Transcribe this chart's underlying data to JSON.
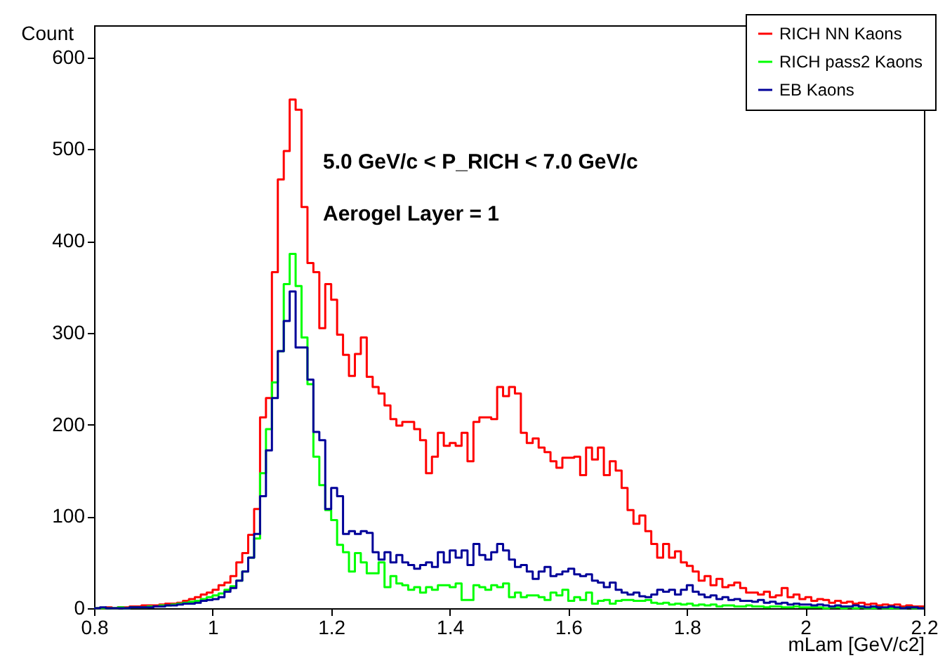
{
  "chart_data": {
    "type": "histogram",
    "xlabel": "mLam [GeV/c2]",
    "ylabel": "Count",
    "annotations": [
      "5.0 GeV/c < P_RICH < 7.0 GeV/c",
      "Aerogel Layer = 1"
    ],
    "bins": [
      0.8,
      0.81,
      0.82,
      0.83,
      0.84,
      0.85,
      0.86,
      0.87,
      0.88,
      0.89,
      0.9,
      0.91,
      0.92,
      0.93,
      0.94,
      0.95,
      0.96,
      0.97,
      0.98,
      0.99,
      1.0,
      1.01,
      1.02,
      1.03,
      1.04,
      1.05,
      1.06,
      1.07,
      1.08,
      1.09,
      1.1,
      1.11,
      1.12,
      1.13,
      1.14,
      1.15,
      1.16,
      1.17,
      1.18,
      1.19,
      1.2,
      1.21,
      1.22,
      1.23,
      1.24,
      1.25,
      1.26,
      1.27,
      1.28,
      1.29,
      1.3,
      1.31,
      1.32,
      1.33,
      1.34,
      1.35,
      1.36,
      1.37,
      1.38,
      1.39,
      1.4,
      1.41,
      1.42,
      1.43,
      1.44,
      1.45,
      1.46,
      1.47,
      1.48,
      1.49,
      1.5,
      1.51,
      1.52,
      1.53,
      1.54,
      1.55,
      1.56,
      1.57,
      1.58,
      1.59,
      1.6,
      1.61,
      1.62,
      1.63,
      1.64,
      1.65,
      1.66,
      1.67,
      1.68,
      1.69,
      1.7,
      1.71,
      1.72,
      1.73,
      1.74,
      1.75,
      1.76,
      1.77,
      1.78,
      1.79,
      1.8,
      1.81,
      1.82,
      1.83,
      1.84,
      1.85,
      1.86,
      1.87,
      1.88,
      1.89,
      1.9,
      1.91,
      1.92,
      1.93,
      1.94,
      1.95,
      1.96,
      1.97,
      1.98,
      1.99,
      2.0,
      2.01,
      2.02,
      2.03,
      2.04,
      2.05,
      2.06,
      2.07,
      2.08,
      2.09,
      2.1,
      2.11,
      2.12,
      2.13,
      2.14,
      2.15,
      2.16,
      2.17,
      2.18,
      2.19,
      2.2
    ],
    "series": [
      {
        "name": "RICH NN Kaons",
        "color": "#ff0000",
        "values": [
          0,
          0,
          1,
          0,
          1,
          1,
          2,
          2,
          3,
          3,
          3,
          4,
          5,
          5,
          6,
          8,
          10,
          12,
          15,
          17,
          20,
          25,
          28,
          35,
          50,
          60,
          80,
          108,
          208,
          229,
          366,
          467,
          498,
          554,
          543,
          437,
          376,
          366,
          305,
          353,
          336,
          298,
          276,
          253,
          277,
          295,
          252,
          241,
          234,
          221,
          206,
          199,
          203,
          203,
          195,
          183,
          147,
          165,
          191,
          177,
          180,
          177,
          191,
          160,
          203,
          208,
          208,
          206,
          241,
          231,
          241,
          234,
          191,
          180,
          185,
          175,
          170,
          160,
          153,
          164,
          164,
          165,
          145,
          175,
          162,
          175,
          145,
          160,
          150,
          131,
          107,
          92,
          101,
          84,
          70,
          55,
          70,
          55,
          62,
          50,
          46,
          40,
          30,
          35,
          25,
          32,
          23,
          25,
          28,
          22,
          17,
          17,
          15,
          18,
          12,
          14,
          22,
          12,
          15,
          10,
          12,
          8,
          10,
          9,
          6,
          8,
          6,
          7,
          5,
          6,
          4,
          5,
          3,
          4,
          3,
          4,
          2,
          3,
          2,
          2
        ]
      },
      {
        "name": "RICH pass2 Kaons",
        "color": "#00ff00",
        "values": [
          0,
          0,
          0,
          0,
          1,
          0,
          1,
          1,
          1,
          2,
          2,
          3,
          3,
          4,
          5,
          6,
          7,
          8,
          10,
          12,
          14,
          16,
          20,
          24,
          30,
          40,
          55,
          76,
          147,
          195,
          246,
          280,
          353,
          386,
          351,
          295,
          244,
          165,
          134,
          107,
          96,
          69,
          61,
          40,
          60,
          50,
          38,
          38,
          50,
          23,
          35,
          27,
          25,
          20,
          23,
          17,
          23,
          20,
          25,
          25,
          23,
          27,
          9,
          9,
          25,
          23,
          20,
          25,
          23,
          27,
          12,
          17,
          12,
          14,
          14,
          12,
          9,
          17,
          14,
          20,
          8,
          12,
          9,
          17,
          5,
          8,
          9,
          5,
          8,
          9,
          9,
          8,
          8,
          9,
          6,
          5,
          6,
          4,
          5,
          4,
          5,
          3,
          4,
          3,
          4,
          2,
          3,
          3,
          2,
          2,
          3,
          2,
          2,
          1,
          2,
          2,
          1,
          1,
          2,
          1,
          1,
          1,
          1,
          0,
          1,
          1,
          0,
          1,
          0,
          1,
          0,
          0,
          1,
          0,
          0,
          0,
          0,
          1,
          0,
          0
        ]
      },
      {
        "name": "EB Kaons",
        "color": "#000099",
        "values": [
          0,
          1,
          0,
          0,
          0,
          0,
          1,
          1,
          1,
          1,
          2,
          2,
          3,
          3,
          4,
          5,
          5,
          6,
          8,
          9,
          10,
          12,
          18,
          22,
          30,
          40,
          55,
          81,
          122,
          172,
          229,
          280,
          313,
          345,
          284,
          284,
          249,
          192,
          183,
          108,
          131,
          122,
          81,
          84,
          81,
          84,
          82,
          61,
          53,
          61,
          50,
          58,
          50,
          47,
          43,
          47,
          50,
          45,
          61,
          50,
          63,
          55,
          63,
          47,
          70,
          58,
          53,
          61,
          70,
          63,
          53,
          45,
          47,
          40,
          32,
          40,
          45,
          35,
          37,
          40,
          43,
          37,
          35,
          37,
          30,
          28,
          23,
          28,
          20,
          17,
          15,
          17,
          13,
          12,
          15,
          20,
          18,
          20,
          15,
          20,
          25,
          18,
          15,
          12,
          14,
          10,
          12,
          9,
          10,
          8,
          8,
          7,
          9,
          6,
          7,
          5,
          6,
          4,
          5,
          4,
          4,
          3,
          4,
          3,
          2,
          3,
          2,
          2,
          3,
          2,
          1,
          2,
          1,
          1,
          2,
          1,
          0,
          1,
          1,
          0
        ]
      }
    ],
    "xlim": [
      0.8,
      2.2
    ],
    "xticks": [
      0.8,
      1,
      1.2,
      1.4,
      1.6,
      1.8,
      2,
      2.2
    ],
    "ylim": [
      0,
      635
    ],
    "yticks": [
      0,
      100,
      200,
      300,
      400,
      500,
      600
    ],
    "grid": false,
    "legend": "top right"
  }
}
